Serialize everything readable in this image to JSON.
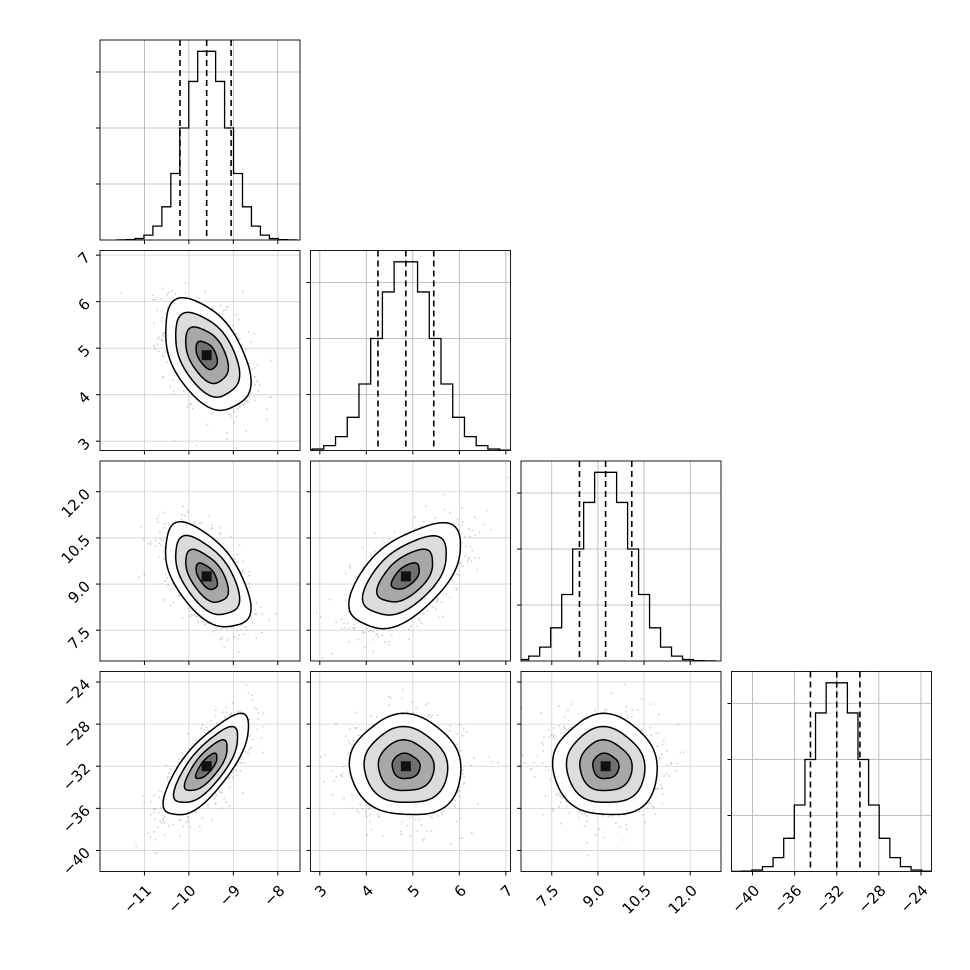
{
  "chart_data": {
    "type": "corner",
    "variables": [
      {
        "range": [
          -12.0,
          -7.5
        ],
        "ticks": [
          -11,
          -10,
          -9,
          -8
        ],
        "quantiles": [
          -10.2,
          -9.6,
          -9.05
        ],
        "mean": -9.6,
        "sd": 0.48
      },
      {
        "range": [
          2.8,
          7.1
        ],
        "ticks": [
          3,
          4,
          5,
          6,
          7
        ],
        "quantiles": [
          4.25,
          4.85,
          5.45
        ],
        "mean": 4.85,
        "sd": 0.6
      },
      {
        "range": [
          6.5,
          13.0
        ],
        "ticks": [
          7.5,
          9.0,
          10.5,
          12.0
        ],
        "tick_labels": [
          "7.5",
          "9.0",
          "10.5",
          "12.0"
        ],
        "quantiles": [
          8.4,
          9.25,
          10.1
        ],
        "mean": 9.25,
        "sd": 0.85
      },
      {
        "range": [
          -42.0,
          -23.0
        ],
        "ticks": [
          -40,
          -36,
          -32,
          -28,
          -24
        ],
        "quantiles": [
          -34.5,
          -32.0,
          -29.8
        ],
        "mean": -32.0,
        "sd": 2.4
      }
    ],
    "correlations": [
      {
        "pair": [
          1,
          0
        ],
        "rho": -0.45
      },
      {
        "pair": [
          2,
          0
        ],
        "rho": -0.55
      },
      {
        "pair": [
          2,
          1
        ],
        "rho": 0.55
      },
      {
        "pair": [
          3,
          0
        ],
        "rho": 0.75
      },
      {
        "pair": [
          3,
          1
        ],
        "rho": -0.05
      },
      {
        "pair": [
          3,
          2
        ],
        "rho": -0.05
      }
    ],
    "histogram_bins": 20,
    "contour_levels": [
      "0.5 sigma",
      "1 sigma",
      "1.5 sigma",
      "2 sigma"
    ],
    "grid": true
  }
}
